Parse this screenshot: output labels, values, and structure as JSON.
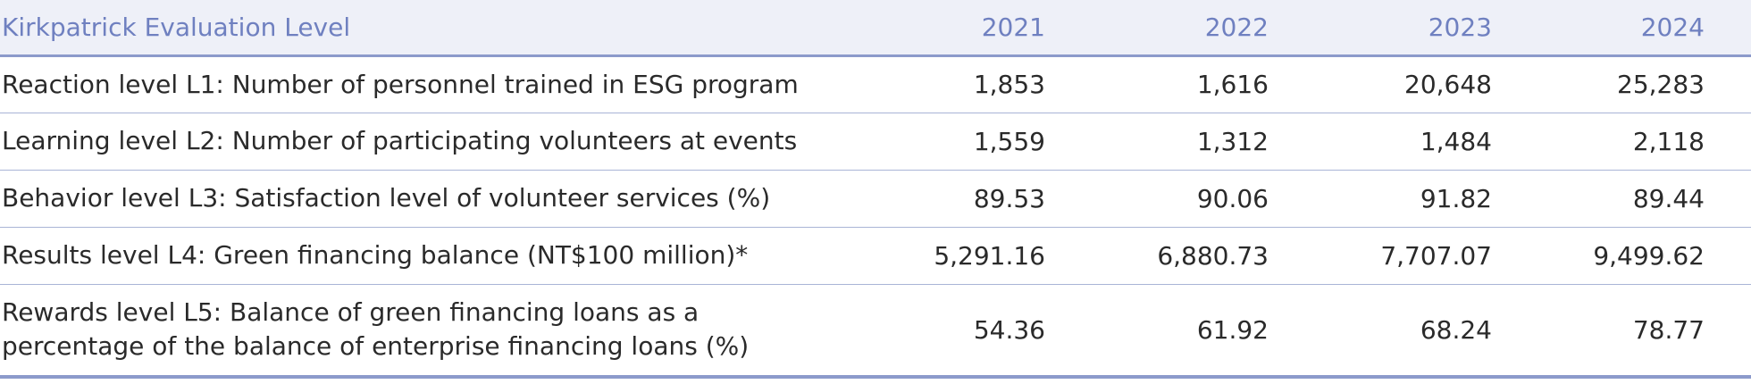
{
  "table": {
    "header": {
      "label": "Kirkpatrick Evaluation Level",
      "years": [
        "2021",
        "2022",
        "2023",
        "2024"
      ]
    },
    "rows": [
      {
        "label": "Reaction level L1: Number of personnel trained in ESG program",
        "values": [
          "1,853",
          "1,616",
          "20,648",
          "25,283"
        ]
      },
      {
        "label": "Learning level L2: Number of participating volunteers at events",
        "values": [
          "1,559",
          "1,312",
          "1,484",
          "2,118"
        ]
      },
      {
        "label": "Behavior level L3: Satisfaction level of volunteer services (%)",
        "values": [
          "89.53",
          "90.06",
          "91.82",
          "89.44"
        ]
      },
      {
        "label": "Results level L4: Green financing balance (NT$100 million)*",
        "values": [
          "5,291.16",
          "6,880.73",
          "7,707.07",
          "9,499.62"
        ]
      },
      {
        "label": "Rewards level L5: Balance of green financing loans as a percentage of the balance of enterprise financing loans (%)",
        "values": [
          "54.36",
          "61.92",
          "68.24",
          "78.77"
        ]
      }
    ]
  }
}
